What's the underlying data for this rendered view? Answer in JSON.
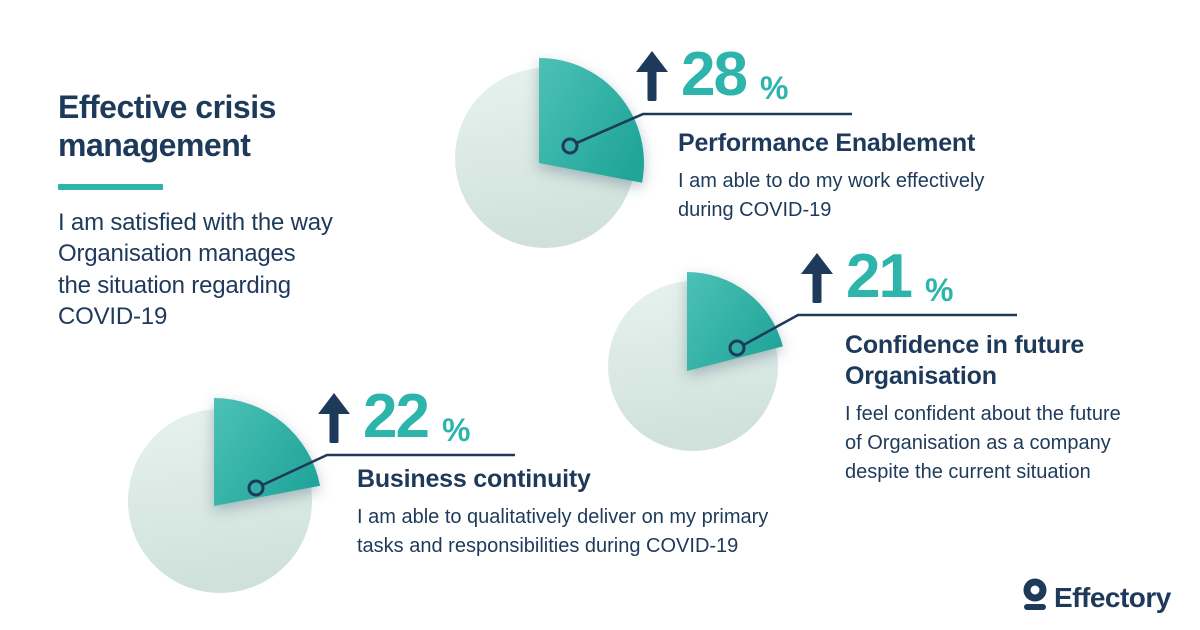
{
  "intro": {
    "title": "Effective crisis\nmanagement",
    "description": "I am satisfied with the way\nOrganisation manages\nthe situation regarding\nCOVID-19"
  },
  "chart_data": [
    {
      "type": "pie",
      "title": "Performance Enablement",
      "description": "I am able to do my work effectively\nduring COVID-19",
      "value_pct": 28,
      "unit": "%",
      "trend": "up",
      "slices": [
        {
          "label": "increase",
          "value": 28
        },
        {
          "label": "remainder",
          "value": 72
        }
      ]
    },
    {
      "type": "pie",
      "title": "Confidence in future\nOrganisation",
      "description": "I feel confident about the future\nof Organisation as a company\ndespite the current situation",
      "value_pct": 21,
      "unit": "%",
      "trend": "up",
      "slices": [
        {
          "label": "increase",
          "value": 21
        },
        {
          "label": "remainder",
          "value": 79
        }
      ]
    },
    {
      "type": "pie",
      "title": "Business continuity",
      "description": "I am able to qualitatively deliver on my primary\ntasks and responsibilities during COVID-19",
      "value_pct": 22,
      "unit": "%",
      "trend": "up",
      "slices": [
        {
          "label": "increase",
          "value": 22
        },
        {
          "label": "remainder",
          "value": 78
        }
      ]
    }
  ],
  "branding": {
    "logo_text": "Effectory"
  },
  "colors": {
    "navy": "#1e3a5b",
    "teal": "#2db4ab",
    "wedge_gradient_start": "#4cc1b6",
    "wedge_gradient_end": "#21a59a",
    "pie_gradient_start": "#e7f2ee",
    "pie_gradient_end": "#cfe1da"
  }
}
